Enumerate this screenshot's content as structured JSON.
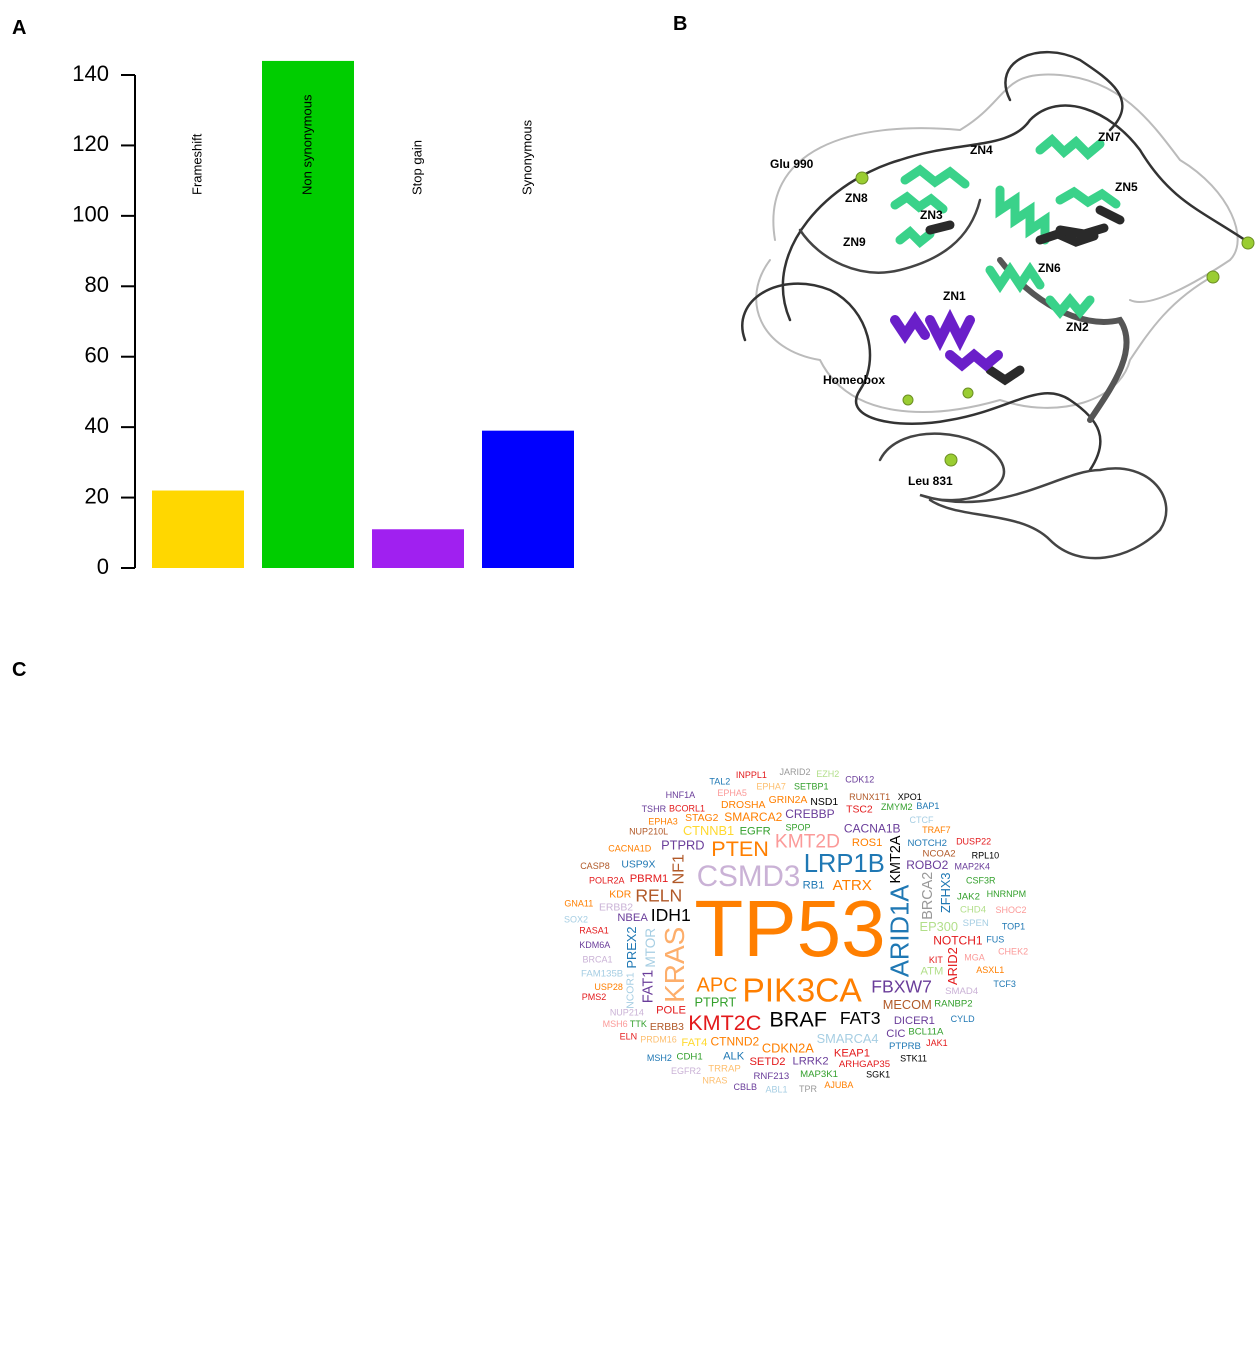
{
  "chart_data": {
    "type": "bar",
    "panel_label": "A",
    "categories": [
      "Frameshift",
      "Non synonymous",
      "Stop gain",
      "Synonymous"
    ],
    "values": [
      22,
      144,
      11,
      39
    ],
    "colors": [
      "#ffd700",
      "#00cd00",
      "#a020f0",
      "#0000ff"
    ],
    "ylim": [
      0,
      145
    ],
    "yticks": [
      0,
      20,
      40,
      60,
      80,
      100,
      120,
      140
    ],
    "grid": false
  },
  "structure": {
    "panel_label": "B",
    "labels": [
      "Glu 990",
      "ZN4",
      "ZN7",
      "ZN5",
      "ZN8",
      "ZN3",
      "ZN9",
      "ZN6",
      "ZN1",
      "ZN2",
      "Homeobox",
      "Leu 831"
    ]
  },
  "word_cloud": {
    "panel_label": "C",
    "words": [
      {
        "text": "TP53",
        "weight": 100,
        "color": "#ff7f00"
      },
      {
        "text": "PIK3CA",
        "weight": 42,
        "color": "#ff7f00"
      },
      {
        "text": "CSMD3",
        "weight": 37,
        "color": "#cab2d6"
      },
      {
        "text": "KRAS",
        "weight": 35,
        "color": "#fdae6b",
        "vertical": true
      },
      {
        "text": "LRP1B",
        "weight": 32,
        "color": "#1f78b4"
      },
      {
        "text": "ARID1A",
        "weight": 32,
        "color": "#1f78b4",
        "vertical": true
      },
      {
        "text": "BRAF",
        "weight": 27,
        "color": "#000000"
      },
      {
        "text": "PTEN",
        "weight": 27,
        "color": "#ff7f00"
      },
      {
        "text": "KMT2C",
        "weight": 27,
        "color": "#e31a1c"
      },
      {
        "text": "APC",
        "weight": 25,
        "color": "#ff7f00"
      },
      {
        "text": "KMT2D",
        "weight": 24,
        "color": "#fb9a99"
      },
      {
        "text": "FBXW7",
        "weight": 22,
        "color": "#6a3d9a"
      },
      {
        "text": "IDH1",
        "weight": 22,
        "color": "#000000"
      },
      {
        "text": "FAT3",
        "weight": 22,
        "color": "#000000"
      },
      {
        "text": "RELN",
        "weight": 22,
        "color": "#b15928"
      },
      {
        "text": "NF1",
        "weight": 20,
        "color": "#b15928",
        "vertical": true
      },
      {
        "text": "ATRX",
        "weight": 19,
        "color": "#ff7f00"
      },
      {
        "text": "KMT2A",
        "weight": 18,
        "color": "#000000",
        "vertical": true
      },
      {
        "text": "BRCA2",
        "weight": 18,
        "color": "#999999",
        "vertical": true
      },
      {
        "text": "MTOR",
        "weight": 17,
        "color": "#a6cee3",
        "vertical": true
      },
      {
        "text": "SMARCA4",
        "weight": 16,
        "color": "#a6cee3"
      },
      {
        "text": "PTPRT",
        "weight": 16,
        "color": "#33a02c"
      },
      {
        "text": "CDKN2A",
        "weight": 16,
        "color": "#ff7f00"
      },
      {
        "text": "MECOM",
        "weight": 16,
        "color": "#b15928"
      },
      {
        "text": "PTPRD",
        "weight": 16,
        "color": "#6a3d9a"
      },
      {
        "text": "CTNNB1",
        "weight": 16,
        "color": "#ffd92f"
      },
      {
        "text": "EP300",
        "weight": 16,
        "color": "#b2df8a"
      },
      {
        "text": "SMARCA2",
        "weight": 15,
        "color": "#ff7f00"
      },
      {
        "text": "CTNND2",
        "weight": 15,
        "color": "#ff7f00"
      },
      {
        "text": "CREBBP",
        "weight": 15,
        "color": "#6a3d9a"
      },
      {
        "text": "CACNA1B",
        "weight": 15,
        "color": "#6a3d9a"
      },
      {
        "text": "NOTCH1",
        "weight": 15,
        "color": "#e31a1c"
      },
      {
        "text": "ROBO2",
        "weight": 15,
        "color": "#6a3d9a"
      },
      {
        "text": "FAT1",
        "weight": 18,
        "color": "#6a3d9a",
        "vertical": true
      },
      {
        "text": "PREX2",
        "weight": 16,
        "color": "#1f78b4",
        "vertical": true
      },
      {
        "text": "ZFHX3",
        "weight": 16,
        "color": "#1f78b4",
        "vertical": true
      },
      {
        "text": "ARID2",
        "weight": 16,
        "color": "#e31a1c",
        "vertical": true
      },
      {
        "text": "EGFR",
        "weight": 14,
        "color": "#33a02c"
      },
      {
        "text": "RB1",
        "weight": 14,
        "color": "#1f78b4"
      },
      {
        "text": "ROS1",
        "weight": 14,
        "color": "#ff7f00"
      },
      {
        "text": "DICER1",
        "weight": 14,
        "color": "#6a3d9a"
      },
      {
        "text": "ATM",
        "weight": 14,
        "color": "#b2df8a"
      },
      {
        "text": "PBRM1",
        "weight": 14,
        "color": "#e31a1c"
      },
      {
        "text": "KEAP1",
        "weight": 14,
        "color": "#e31a1c"
      },
      {
        "text": "NBEA",
        "weight": 14,
        "color": "#6a3d9a"
      },
      {
        "text": "LRRK2",
        "weight": 14,
        "color": "#6a3d9a"
      },
      {
        "text": "POLE",
        "weight": 14,
        "color": "#e31a1c"
      },
      {
        "text": "SETD2",
        "weight": 14,
        "color": "#e31a1c"
      },
      {
        "text": "CIC",
        "weight": 14,
        "color": "#6a3d9a"
      },
      {
        "text": "ALK",
        "weight": 14,
        "color": "#1f78b4"
      },
      {
        "text": "FAT4",
        "weight": 14,
        "color": "#ffd92f"
      },
      {
        "text": "ERBB3",
        "weight": 13,
        "color": "#b15928"
      },
      {
        "text": "ERBB2",
        "weight": 13,
        "color": "#cab2d6"
      },
      {
        "text": "NCOR1",
        "weight": 13,
        "color": "#a6cee3",
        "vertical": true
      },
      {
        "text": "USP9X",
        "weight": 13,
        "color": "#1f78b4"
      },
      {
        "text": "STAG2",
        "weight": 13,
        "color": "#ff7f00"
      },
      {
        "text": "DROSHA",
        "weight": 13,
        "color": "#ff7f00"
      },
      {
        "text": "KDR",
        "weight": 13,
        "color": "#ff7f00"
      },
      {
        "text": "GRIN2A",
        "weight": 13,
        "color": "#ff7f00"
      },
      {
        "text": "NSD1",
        "weight": 13,
        "color": "#000000"
      },
      {
        "text": "TSC2",
        "weight": 13,
        "color": "#e31a1c"
      },
      {
        "text": "NOTCH2",
        "weight": 12,
        "color": "#1f78b4"
      },
      {
        "text": "NCOA2",
        "weight": 12,
        "color": "#b15928"
      },
      {
        "text": "JAK2",
        "weight": 12,
        "color": "#33a02c"
      },
      {
        "text": "SMAD4",
        "weight": 12,
        "color": "#cab2d6"
      },
      {
        "text": "CHD4",
        "weight": 12,
        "color": "#b2df8a"
      },
      {
        "text": "ARHGAP35",
        "weight": 12,
        "color": "#e31a1c"
      },
      {
        "text": "RANBP2",
        "weight": 12,
        "color": "#33a02c"
      },
      {
        "text": "BCL11A",
        "weight": 12,
        "color": "#33a02c"
      },
      {
        "text": "PTPRB",
        "weight": 12,
        "color": "#1f78b4"
      },
      {
        "text": "MAP3K1",
        "weight": 12,
        "color": "#33a02c"
      },
      {
        "text": "RNF213",
        "weight": 12,
        "color": "#6a3d9a"
      },
      {
        "text": "SPEN",
        "weight": 12,
        "color": "#a6cee3"
      },
      {
        "text": "TRRAP",
        "weight": 12,
        "color": "#fdbf6f"
      },
      {
        "text": "CDH1",
        "weight": 12,
        "color": "#33a02c"
      },
      {
        "text": "PRDM16",
        "weight": 11,
        "color": "#fdbf6f"
      },
      {
        "text": "FAM135B",
        "weight": 12,
        "color": "#a6cee3"
      },
      {
        "text": "NUP214",
        "weight": 11,
        "color": "#cab2d6"
      },
      {
        "text": "SPOP",
        "weight": 11,
        "color": "#33a02c"
      },
      {
        "text": "USP28",
        "weight": 11,
        "color": "#ff7f00"
      },
      {
        "text": "BRCA1",
        "weight": 11,
        "color": "#cab2d6"
      },
      {
        "text": "KDM6A",
        "weight": 11,
        "color": "#6a3d9a"
      },
      {
        "text": "RASA1",
        "weight": 11,
        "color": "#e31a1c"
      },
      {
        "text": "POLR2A",
        "weight": 11,
        "color": "#e31a1c"
      },
      {
        "text": "CACNA1D",
        "weight": 11,
        "color": "#ff7f00"
      },
      {
        "text": "NUP210L",
        "weight": 11,
        "color": "#b15928"
      },
      {
        "text": "BCORL1",
        "weight": 11,
        "color": "#e31a1c"
      },
      {
        "text": "EPHA3",
        "weight": 11,
        "color": "#ff7f00"
      },
      {
        "text": "EPHA5",
        "weight": 11,
        "color": "#fb9a99"
      },
      {
        "text": "EPHA7",
        "weight": 11,
        "color": "#fdbf6f"
      },
      {
        "text": "SETBP1",
        "weight": 11,
        "color": "#33a02c"
      },
      {
        "text": "RUNX1T1",
        "weight": 11,
        "color": "#b15928"
      },
      {
        "text": "ZMYM2",
        "weight": 11,
        "color": "#33a02c"
      },
      {
        "text": "CTCF",
        "weight": 11,
        "color": "#a6cee3"
      },
      {
        "text": "MGA",
        "weight": 11,
        "color": "#fb9a99"
      },
      {
        "text": "TRAF7",
        "weight": 10,
        "color": "#ff7f00"
      },
      {
        "text": "MAP2K4",
        "weight": 10,
        "color": "#6a3d9a"
      },
      {
        "text": "CSF3R",
        "weight": 10,
        "color": "#33a02c"
      },
      {
        "text": "ASXL1",
        "weight": 10,
        "color": "#ff7f00"
      },
      {
        "text": "CYLD",
        "weight": 10,
        "color": "#1f78b4"
      },
      {
        "text": "JAK1",
        "weight": 10,
        "color": "#e31a1c"
      },
      {
        "text": "STK11",
        "weight": 10,
        "color": "#000000"
      },
      {
        "text": "SGK1",
        "weight": 10,
        "color": "#000000"
      },
      {
        "text": "TTK",
        "weight": 10,
        "color": "#33a02c"
      },
      {
        "text": "AJUBA",
        "weight": 10,
        "color": "#ff7f00"
      },
      {
        "text": "FUS",
        "weight": 10,
        "color": "#1f78b4"
      },
      {
        "text": "TPR",
        "weight": 10,
        "color": "#999999"
      },
      {
        "text": "ABL1",
        "weight": 9,
        "color": "#a6cee3"
      },
      {
        "text": "CBLB",
        "weight": 9,
        "color": "#6a3d9a"
      },
      {
        "text": "NRAS",
        "weight": 10,
        "color": "#fdbf6f"
      },
      {
        "text": "EGFR2",
        "weight": 9,
        "color": "#cab2d6"
      },
      {
        "text": "KIT",
        "weight": 9,
        "color": "#e31a1c"
      },
      {
        "text": "MSH2",
        "weight": 10,
        "color": "#1f78b4"
      },
      {
        "text": "MSH6",
        "weight": 10,
        "color": "#fb9a99"
      },
      {
        "text": "PMS2",
        "weight": 10,
        "color": "#e31a1c"
      },
      {
        "text": "SOX2",
        "weight": 9,
        "color": "#a6cee3"
      },
      {
        "text": "ELN",
        "weight": 9,
        "color": "#e31a1c"
      },
      {
        "text": "GNA11",
        "weight": 9,
        "color": "#ff7f00"
      },
      {
        "text": "CASP8",
        "weight": 10,
        "color": "#b15928"
      },
      {
        "text": "HNF1A",
        "weight": 9,
        "color": "#6a3d9a"
      },
      {
        "text": "TSHR",
        "weight": 9,
        "color": "#6a3d9a"
      },
      {
        "text": "TAL2",
        "weight": 8,
        "color": "#1f78b4"
      },
      {
        "text": "INPPL1",
        "weight": 10,
        "color": "#e31a1c"
      },
      {
        "text": "JARID2",
        "weight": 10,
        "color": "#999999"
      },
      {
        "text": "EZH2",
        "weight": 9,
        "color": "#b2df8a"
      },
      {
        "text": "CDK12",
        "weight": 10,
        "color": "#6a3d9a"
      },
      {
        "text": "XPO1",
        "weight": 9,
        "color": "#000000"
      },
      {
        "text": "BAP1",
        "weight": 10,
        "color": "#1f78b4"
      },
      {
        "text": "DUSP22",
        "weight": 10,
        "color": "#e31a1c"
      },
      {
        "text": "RPL10",
        "weight": 9,
        "color": "#000000"
      },
      {
        "text": "HNRNPM",
        "weight": 9,
        "color": "#33a02c"
      },
      {
        "text": "SHOC2",
        "weight": 10,
        "color": "#fb9a99"
      },
      {
        "text": "TOP1",
        "weight": 9,
        "color": "#1f78b4"
      },
      {
        "text": "CHEK2",
        "weight": 9,
        "color": "#fb9a99"
      },
      {
        "text": "TCF3",
        "weight": 9,
        "color": "#1f78b4"
      }
    ]
  }
}
